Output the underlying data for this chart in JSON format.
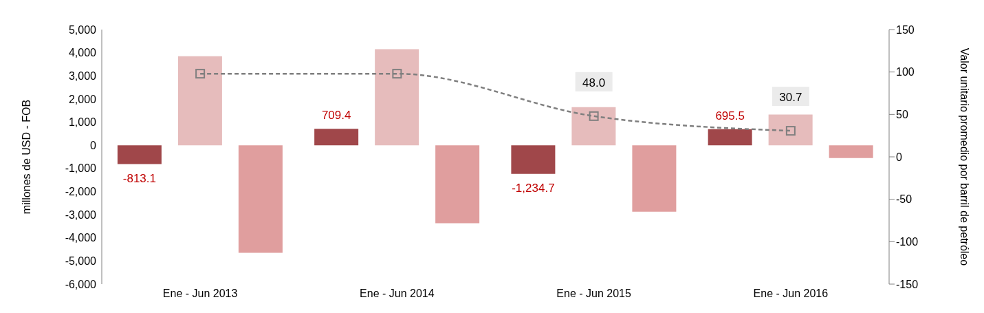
{
  "chart_data": {
    "type": "bar",
    "categories": [
      "Ene - Jun  2013",
      "Ene - Jun  2014",
      "Ene - Jun  2015",
      "Ene - Jun  2016"
    ],
    "ylabel": "millones de USD - FOB",
    "y2label": "Valor unitario promedio por barril de petróleo",
    "ylim": [
      -6000,
      5000
    ],
    "yticks": [
      {
        "value": -6000,
        "label": "-6,000"
      },
      {
        "value": -5000,
        "label": "-5,000"
      },
      {
        "value": -4000,
        "label": "-4,000"
      },
      {
        "value": -3000,
        "label": "-3,000"
      },
      {
        "value": -2000,
        "label": "-2,000"
      },
      {
        "value": -1000,
        "label": "-1,000"
      },
      0,
      {
        "value": 1000,
        "label": "1,000"
      },
      {
        "value": 2000,
        "label": "2,000"
      },
      {
        "value": 3000,
        "label": "3,000"
      },
      {
        "value": 4000,
        "label": "4,000"
      },
      {
        "value": 5000,
        "label": "5,000"
      }
    ],
    "y2lim": [
      -150,
      150
    ],
    "y2ticks": [
      -150,
      -100,
      -50,
      0,
      50,
      100,
      150
    ],
    "series": [
      {
        "color": "#a0474a",
        "values": [
          -813.1,
          709.4,
          -1234.7,
          695.5
        ],
        "value_labels": [
          "-813.1",
          "709.4",
          "-1,234.7",
          "695.5"
        ]
      },
      {
        "color": "#e6bcbc",
        "values": [
          3850,
          4150,
          1650,
          1330
        ]
      },
      {
        "color": "#e09e9e",
        "values": [
          -4650,
          -3370,
          -2870,
          -550
        ]
      },
      {
        "type": "line",
        "axis": "y2",
        "color": "#7f7f7f",
        "marker": "square",
        "line_style": "dashed",
        "values": [
          98,
          98,
          48.0,
          30.7
        ],
        "value_labels": [
          null,
          null,
          "48.0",
          "30.7"
        ]
      }
    ]
  }
}
